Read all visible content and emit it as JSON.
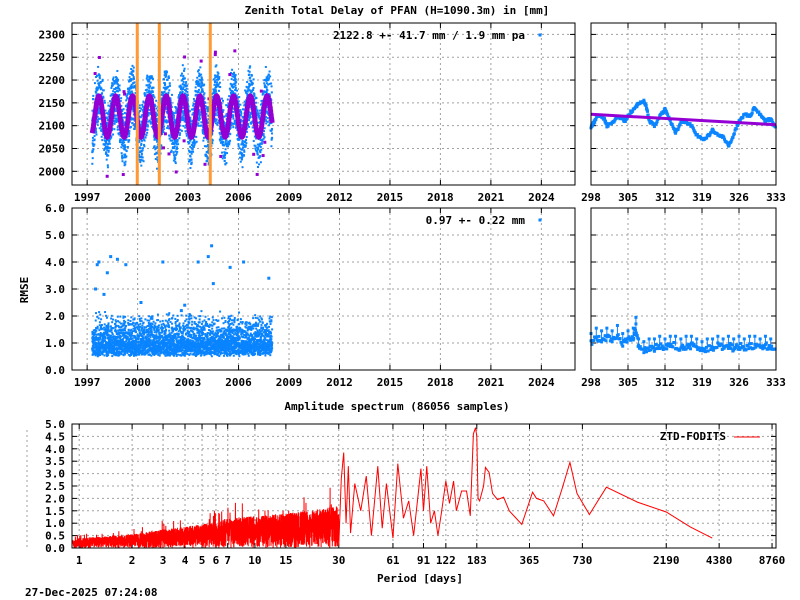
{
  "title": "Zenith Total Delay of PFAN (H=1090.3m) in [mm]",
  "timestamp": "27-Dec-2025 07:24:08",
  "colors": {
    "observations": "#0a84ff",
    "model": "#9400d3",
    "breaks": "#ff9933",
    "spectrum": "#ff0000",
    "grid": "#a0a0a0"
  },
  "chart_data": [
    {
      "id": "ztd-timeseries",
      "type": "scatter",
      "title": "Zenith Total Delay of PFAN (H=1090.3m) in [mm]",
      "xlim": [
        1996.1,
        2026.0
      ],
      "ylim": [
        1970,
        2325
      ],
      "x_ticks": [
        "1997",
        "2000",
        "2003",
        "2006",
        "2009",
        "2012",
        "2015",
        "2018",
        "2021",
        "2024"
      ],
      "y_ticks": [
        "2000",
        "2050",
        "2100",
        "2150",
        "2200",
        "2250",
        "2300"
      ],
      "grid": true,
      "legend": {
        "text": "2122.8 +-  41.7 mm /  1.9 mm pa",
        "position": "top-right"
      },
      "observations": {
        "x_range": [
          1997.3,
          2008.0
        ],
        "y_range": [
          2005,
          2270
        ]
      },
      "model": {
        "type": "annual sinusoid",
        "mean": 2120,
        "amplitude": 45,
        "peak_phase_year": 0.7,
        "x_range": [
          1997.3,
          2008.0
        ]
      },
      "breaks": [
        1999.98,
        2001.29,
        2004.32
      ]
    },
    {
      "id": "ztd-zoom",
      "type": "scatter",
      "xlim": [
        298,
        333
      ],
      "ylim": [
        1970,
        2325
      ],
      "x_ticks": [
        "298",
        "305",
        "312",
        "319",
        "326",
        "333"
      ],
      "grid": true,
      "observations": {
        "x": [
          298,
          298.7,
          299.5,
          300.5,
          301,
          302,
          303,
          304,
          304.5,
          305.5,
          306.5,
          307,
          308,
          308.5,
          309,
          310,
          311,
          312,
          313,
          314,
          315,
          316,
          317,
          318,
          319,
          320,
          321,
          322,
          323,
          324,
          325,
          326,
          327,
          328,
          329,
          330,
          331,
          332,
          333
        ],
        "y": [
          2095,
          2110,
          2125,
          2115,
          2100,
          2105,
          2120,
          2115,
          2110,
          2130,
          2140,
          2150,
          2155,
          2140,
          2110,
          2100,
          2120,
          2135,
          2110,
          2085,
          2105,
          2110,
          2100,
          2080,
          2070,
          2075,
          2090,
          2080,
          2075,
          2055,
          2080,
          2110,
          2125,
          2120,
          2140,
          2125,
          2110,
          2115,
          2095
        ]
      },
      "trend": {
        "x": [
          298,
          333
        ],
        "y": [
          2125,
          2102
        ]
      }
    },
    {
      "id": "rmse-timeseries",
      "type": "scatter",
      "ylabel": "RMSE",
      "xlim": [
        1996.1,
        2026.0
      ],
      "ylim": [
        0,
        6
      ],
      "x_ticks": [
        "1997",
        "2000",
        "2003",
        "2006",
        "2009",
        "2012",
        "2015",
        "2018",
        "2021",
        "2024"
      ],
      "y_ticks": [
        "0.0",
        "1.0",
        "2.0",
        "3.0",
        "4.0",
        "5.0",
        "6.0"
      ],
      "grid": true,
      "legend": {
        "text": "0.97 +-  0.22 mm",
        "position": "top-right"
      },
      "observations": {
        "x_range": [
          1997.3,
          2008.0
        ],
        "y_range": [
          0.5,
          1.9
        ]
      },
      "outliers": {
        "x": [
          1997.6,
          1997.7,
          1998.0,
          1998.4,
          1998.8,
          1999.3,
          2001.5,
          2002.6,
          2003.6,
          2004.2,
          2004.4,
          2004.5,
          2005.5,
          2006.3,
          2007.8,
          1997.5,
          1998.2,
          2000.2,
          2002.8
        ],
        "y": [
          3.9,
          4.0,
          2.8,
          4.2,
          4.1,
          3.9,
          4.0,
          2.2,
          4.0,
          4.2,
          4.6,
          3.2,
          3.8,
          4.0,
          3.4,
          3.0,
          3.6,
          2.5,
          2.4
        ]
      }
    },
    {
      "id": "rmse-zoom",
      "type": "scatter",
      "xlim": [
        298,
        333
      ],
      "ylim": [
        0,
        6
      ],
      "x_ticks": [
        "298",
        "305",
        "312",
        "319",
        "326",
        "333"
      ],
      "grid": true,
      "observations": {
        "x": [
          298,
          299,
          300,
          301,
          302,
          303,
          304,
          305,
          306,
          306.5,
          307,
          308,
          309,
          310,
          311,
          312,
          313,
          314,
          315,
          316,
          317,
          318,
          319,
          320,
          321,
          322,
          323,
          324,
          325,
          326,
          327,
          328,
          329,
          330,
          331,
          332,
          333
        ],
        "y": [
          1.0,
          1.2,
          1.1,
          1.2,
          1.1,
          1.3,
          1.0,
          1.1,
          1.2,
          1.6,
          0.8,
          0.7,
          0.8,
          0.8,
          0.9,
          0.8,
          0.9,
          0.9,
          0.8,
          0.9,
          0.9,
          0.8,
          0.7,
          0.8,
          0.8,
          0.9,
          0.8,
          0.9,
          0.8,
          0.9,
          0.8,
          0.9,
          0.9,
          0.8,
          0.9,
          0.8,
          0.9
        ]
      }
    },
    {
      "id": "amplitude-spectrum",
      "type": "line",
      "title": "Amplitude spectrum (86056 samples)",
      "xlabel": "Period [days]",
      "x_scale": "log",
      "xlim": [
        0.91,
        9226
      ],
      "ylim": [
        0,
        5
      ],
      "x_ticks": [
        "1",
        "2",
        "3",
        "4",
        "5",
        "6",
        "7",
        "10",
        "15",
        "30",
        "61",
        "91",
        "122",
        "183",
        "365",
        "730",
        "2190",
        "4380",
        "8760"
      ],
      "y_ticks": [
        "0.0",
        "0.5",
        "1.0",
        "1.5",
        "2.0",
        "2.5",
        "3.0",
        "3.5",
        "4.0",
        "4.5",
        "5.0"
      ],
      "grid": true,
      "legend": {
        "text": "ZTD-FODITS",
        "position": "top-right"
      },
      "short_period_envelope": {
        "period": [
          0.92,
          1,
          2,
          3,
          5,
          7,
          10,
          15,
          20,
          30
        ],
        "amplitude": [
          0.35,
          0.4,
          0.55,
          0.75,
          0.95,
          1.2,
          1.3,
          1.4,
          1.5,
          1.7
        ]
      },
      "peaks": {
        "period": [
          30,
          31,
          32,
          33,
          34,
          35,
          37,
          40,
          43,
          46,
          50,
          53,
          56,
          61,
          65,
          70,
          75,
          80,
          85,
          88,
          91,
          95,
          100,
          105,
          110,
          115,
          122,
          128,
          135,
          140,
          150,
          160,
          168,
          175,
          180,
          183,
          186,
          190,
          200,
          205,
          215,
          225,
          240,
          260,
          280,
          330,
          380,
          400,
          440,
          500,
          560,
          620,
          680,
          800,
          1000,
          1500,
          2190,
          3000,
          4000
        ],
        "amplitude": [
          0.1,
          2.8,
          3.85,
          1.0,
          3.3,
          0.6,
          2.6,
          1.5,
          2.9,
          0.5,
          3.3,
          0.8,
          2.6,
          0.4,
          3.4,
          1.2,
          1.9,
          0.5,
          2.2,
          3.2,
          1.5,
          3.3,
          1.0,
          1.5,
          0.5,
          1.4,
          2.7,
          1.8,
          2.7,
          1.5,
          2.3,
          2.3,
          1.3,
          4.6,
          4.85,
          4.5,
          2.0,
          1.9,
          2.5,
          3.25,
          3.05,
          2.2,
          1.95,
          2.05,
          1.5,
          0.95,
          2.25,
          2.0,
          1.9,
          1.3,
          2.4,
          3.45,
          2.2,
          1.35,
          2.45,
          1.85,
          1.45,
          0.85,
          0.4
        ]
      }
    }
  ]
}
